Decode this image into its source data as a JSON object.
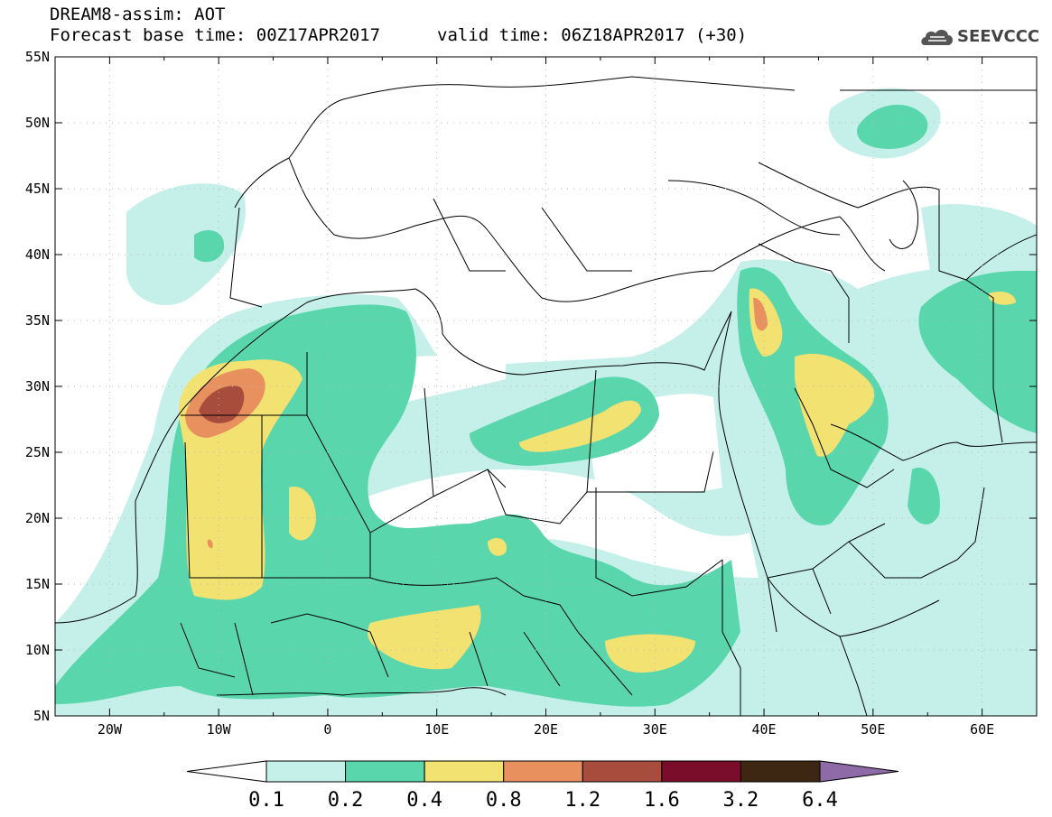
{
  "header": {
    "line1": "DREAM8-assim: AOT",
    "line2": "Forecast base time: 00Z17APR2017",
    "valid": "valid time: 06Z18APR2017 (+30)",
    "logo": "SEEVCCC"
  },
  "map": {
    "lon_range": [
      -25,
      65
    ],
    "lat_range": [
      5,
      55
    ],
    "lat_ticks": [
      "5N",
      "10N",
      "15N",
      "20N",
      "25N",
      "30N",
      "35N",
      "40N",
      "45N",
      "50N",
      "55N"
    ],
    "lon_ticks": [
      "20W",
      "10W",
      "0",
      "10E",
      "20E",
      "30E",
      "40E",
      "50E",
      "60E"
    ],
    "grid": "dotted",
    "field": "AOT"
  },
  "colorbar": {
    "labels": [
      "0.1",
      "0.2",
      "0.4",
      "0.8",
      "1.2",
      "1.6",
      "3.2",
      "6.4"
    ],
    "colors": [
      "#c5f0ea",
      "#5ad6ac",
      "#f2e271",
      "#e8915f",
      "#a84d3e",
      "#7a0d2a",
      "#3d2713",
      "#8e6aa6"
    ],
    "lower_extend_color": "#ffffff"
  }
}
